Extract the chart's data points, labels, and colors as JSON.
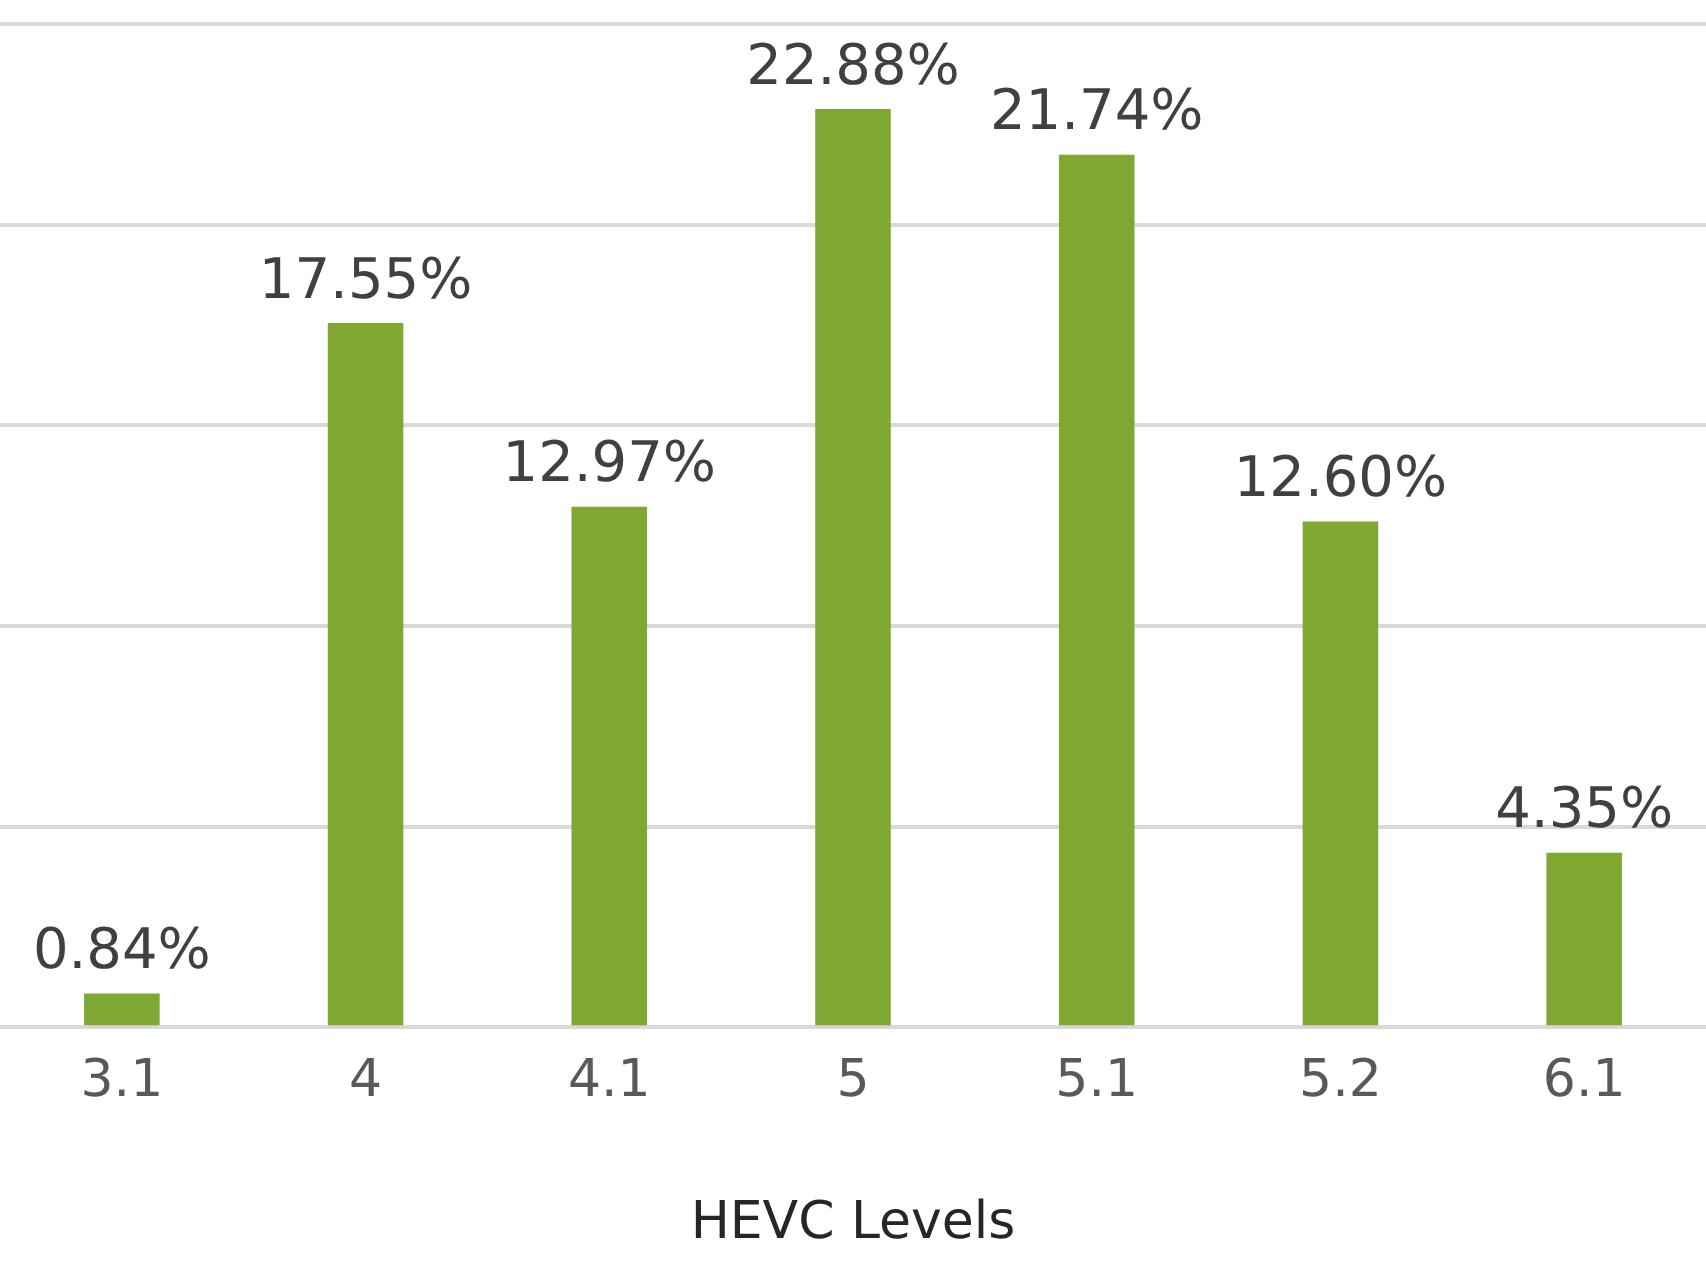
{
  "chart_data": {
    "type": "bar",
    "xlabel": "HEVC Levels",
    "categories": [
      "3.1",
      "4",
      "4.1",
      "5",
      "5.1",
      "5.2",
      "6.1"
    ],
    "values": [
      0.84,
      17.55,
      12.97,
      22.88,
      21.74,
      12.6,
      4.35
    ],
    "value_labels": [
      "0.84%",
      "17.55%",
      "12.97%",
      "22.88%",
      "21.74%",
      "12.60%",
      "4.35%"
    ],
    "color": "#7ea832",
    "ylim": [
      0,
      25
    ],
    "grid": "y",
    "tick_labels": "x",
    "legend": false
  }
}
